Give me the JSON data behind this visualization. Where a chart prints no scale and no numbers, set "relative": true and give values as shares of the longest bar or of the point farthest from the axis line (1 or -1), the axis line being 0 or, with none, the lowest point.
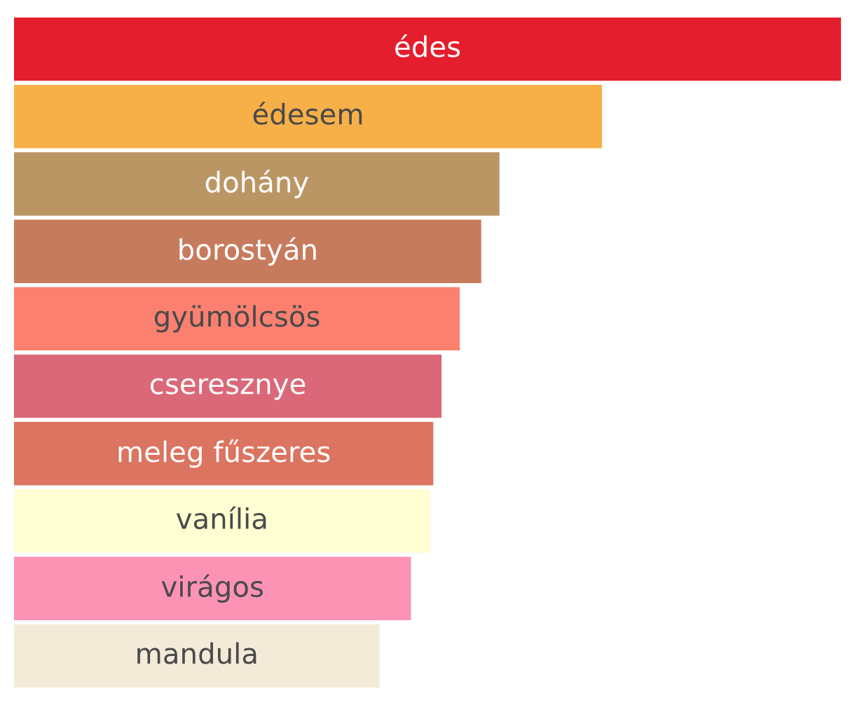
{
  "chart_data": {
    "type": "bar",
    "orientation": "horizontal",
    "relative": true,
    "data_labels": false,
    "legend": false,
    "categories": [
      "édes",
      "édesem",
      "dohány",
      "borostyán",
      "gyümölcsös",
      "cseresznye",
      "meleg fűszeres",
      "vanília",
      "virágos",
      "mandula"
    ],
    "values": [
      1,
      0.711,
      0.587,
      0.565,
      0.539,
      0.517,
      0.507,
      0.503,
      0.48,
      0.442
    ],
    "colors": [
      "#e41e2d",
      "#f7b048",
      "#bb9665",
      "#c77b5d",
      "#fb8070",
      "#da6878",
      "#db7460",
      "#fffdd2",
      "#fd93b4",
      "#f3ead8"
    ]
  }
}
